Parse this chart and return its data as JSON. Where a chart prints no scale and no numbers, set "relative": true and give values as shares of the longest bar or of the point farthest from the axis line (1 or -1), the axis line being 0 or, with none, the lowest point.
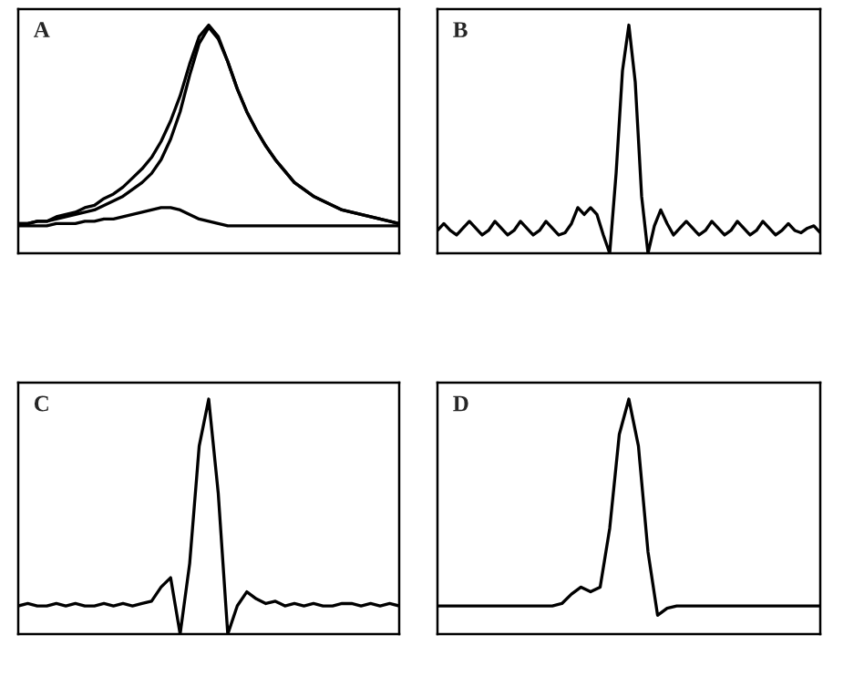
{
  "chart_data": [
    {
      "type": "line",
      "relative": true,
      "annotations": [
        "A"
      ],
      "categories": [
        null,
        null,
        null,
        null,
        null,
        null,
        null,
        null,
        null,
        null,
        null,
        null,
        null,
        null,
        null,
        null,
        null,
        null,
        null,
        null,
        null,
        null,
        null,
        null,
        null,
        null,
        null,
        null,
        null,
        null,
        null,
        null,
        null,
        null,
        null,
        null,
        null,
        null,
        null,
        null,
        null
      ],
      "series": [
        {
          "color": "#000000",
          "values": [
            0.13,
            0.13,
            0.14,
            0.14,
            0.16,
            0.17,
            0.18,
            0.2,
            0.21,
            0.24,
            0.26,
            0.29,
            0.33,
            0.37,
            0.42,
            0.49,
            0.58,
            0.69,
            0.83,
            0.95,
            1.0,
            0.95,
            0.84,
            0.72,
            0.62,
            0.54,
            0.47,
            0.41,
            0.36,
            0.31,
            0.28,
            0.25,
            0.23,
            0.21,
            0.19,
            0.18,
            0.17,
            0.16,
            0.15,
            0.14,
            0.13
          ]
        },
        {
          "color": "#000000",
          "values": [
            0.13,
            0.13,
            0.14,
            0.14,
            0.15,
            0.16,
            0.17,
            0.18,
            0.19,
            0.21,
            0.23,
            0.25,
            0.28,
            0.31,
            0.35,
            0.41,
            0.5,
            0.62,
            0.78,
            0.92,
            0.99,
            0.94,
            0.84,
            0.72,
            0.62,
            0.54,
            0.47,
            0.41,
            0.36,
            0.31,
            0.28,
            0.25,
            0.23,
            0.21,
            0.19,
            0.18,
            0.17,
            0.16,
            0.15,
            0.14,
            0.13
          ]
        },
        {
          "color": "#000000",
          "values": [
            0.12,
            0.12,
            0.12,
            0.12,
            0.13,
            0.13,
            0.13,
            0.14,
            0.14,
            0.15,
            0.15,
            0.16,
            0.17,
            0.18,
            0.19,
            0.2,
            0.2,
            0.19,
            0.17,
            0.15,
            0.14,
            0.13,
            0.12,
            0.12,
            0.12,
            0.12,
            0.12,
            0.12,
            0.12,
            0.12,
            0.12,
            0.12,
            0.12,
            0.12,
            0.12,
            0.12,
            0.12,
            0.12,
            0.12,
            0.12,
            0.12
          ]
        }
      ]
    },
    {
      "type": "line",
      "relative": true,
      "annotations": [
        "B"
      ],
      "categories": [
        null,
        null,
        null,
        null,
        null,
        null,
        null,
        null,
        null,
        null,
        null,
        null,
        null,
        null,
        null,
        null,
        null,
        null,
        null,
        null,
        null,
        null,
        null,
        null,
        null,
        null,
        null,
        null,
        null,
        null,
        null,
        null,
        null,
        null,
        null,
        null,
        null,
        null,
        null,
        null,
        null,
        null,
        null,
        null,
        null,
        null,
        null,
        null,
        null,
        null,
        null,
        null,
        null,
        null,
        null,
        null,
        null,
        null,
        null,
        null,
        null
      ],
      "series": [
        {
          "color": "#000000",
          "values": [
            0.1,
            0.13,
            0.1,
            0.08,
            0.11,
            0.14,
            0.11,
            0.08,
            0.1,
            0.14,
            0.11,
            0.08,
            0.1,
            0.14,
            0.11,
            0.08,
            0.1,
            0.14,
            0.11,
            0.08,
            0.09,
            0.13,
            0.2,
            0.17,
            0.2,
            0.17,
            0.08,
            0.0,
            0.35,
            0.8,
            1.0,
            0.75,
            0.25,
            0.0,
            0.12,
            0.19,
            0.13,
            0.08,
            0.11,
            0.14,
            0.11,
            0.08,
            0.1,
            0.14,
            0.11,
            0.08,
            0.1,
            0.14,
            0.11,
            0.08,
            0.1,
            0.14,
            0.11,
            0.08,
            0.1,
            0.13,
            0.1,
            0.09,
            0.11,
            0.12,
            0.09
          ]
        }
      ]
    },
    {
      "type": "line",
      "relative": true,
      "annotations": [
        "C"
      ],
      "categories": [
        null,
        null,
        null,
        null,
        null,
        null,
        null,
        null,
        null,
        null,
        null,
        null,
        null,
        null,
        null,
        null,
        null,
        null,
        null,
        null,
        null,
        null,
        null,
        null,
        null,
        null,
        null,
        null,
        null,
        null,
        null,
        null,
        null,
        null,
        null,
        null,
        null,
        null,
        null,
        null,
        null
      ],
      "series": [
        {
          "color": "#000000",
          "values": [
            0.12,
            0.13,
            0.12,
            0.12,
            0.13,
            0.12,
            0.13,
            0.12,
            0.12,
            0.13,
            0.12,
            0.13,
            0.12,
            0.13,
            0.14,
            0.2,
            0.24,
            0.0,
            0.3,
            0.8,
            1.0,
            0.6,
            0.0,
            0.12,
            0.18,
            0.15,
            0.13,
            0.14,
            0.12,
            0.13,
            0.12,
            0.13,
            0.12,
            0.12,
            0.13,
            0.13,
            0.12,
            0.13,
            0.12,
            0.13,
            0.12
          ]
        }
      ]
    },
    {
      "type": "line",
      "relative": true,
      "annotations": [
        "D"
      ],
      "categories": [
        null,
        null,
        null,
        null,
        null,
        null,
        null,
        null,
        null,
        null,
        null,
        null,
        null,
        null,
        null,
        null,
        null,
        null,
        null,
        null,
        null,
        null,
        null,
        null,
        null,
        null,
        null,
        null,
        null,
        null,
        null,
        null,
        null,
        null,
        null,
        null,
        null,
        null,
        null,
        null,
        null
      ],
      "series": [
        {
          "color": "#000000",
          "values": [
            0.12,
            0.12,
            0.12,
            0.12,
            0.12,
            0.12,
            0.12,
            0.12,
            0.12,
            0.12,
            0.12,
            0.12,
            0.12,
            0.13,
            0.17,
            0.2,
            0.18,
            0.2,
            0.45,
            0.85,
            1.0,
            0.8,
            0.35,
            0.08,
            0.11,
            0.12,
            0.12,
            0.12,
            0.12,
            0.12,
            0.12,
            0.12,
            0.12,
            0.12,
            0.12,
            0.12,
            0.12,
            0.12,
            0.12,
            0.12,
            0.12
          ]
        }
      ]
    }
  ]
}
